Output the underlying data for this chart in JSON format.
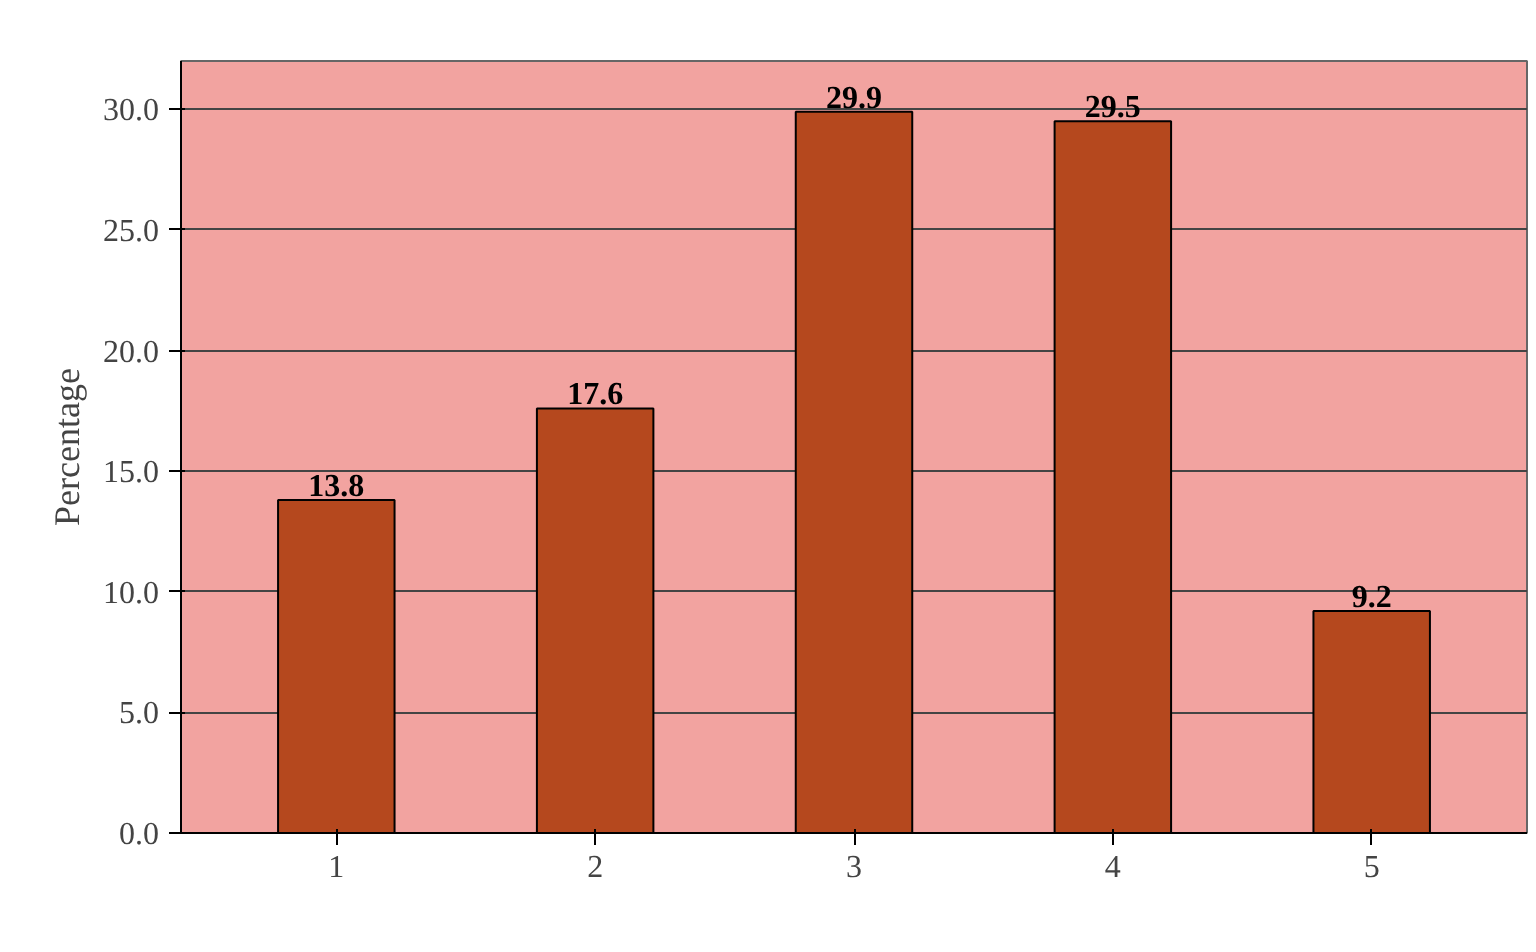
{
  "chart_data": {
    "type": "bar",
    "ylabel": "Percentage",
    "categories": [
      "1",
      "2",
      "3",
      "4",
      "5"
    ],
    "values": [
      13.8,
      17.6,
      29.9,
      29.5,
      9.2
    ],
    "color": "#b5481e",
    "ylim": [
      0,
      32
    ],
    "yticks": [
      {
        "value": 0,
        "label": "0.0"
      },
      {
        "value": 5,
        "label": "5.0"
      },
      {
        "value": 10,
        "label": "10.0"
      },
      {
        "value": 15,
        "label": "15.0"
      },
      {
        "value": 20,
        "label": "20.0"
      },
      {
        "value": 25,
        "label": "25.0"
      },
      {
        "value": 30,
        "label": "30.0"
      }
    ],
    "grid": "y",
    "data_labels": true
  }
}
